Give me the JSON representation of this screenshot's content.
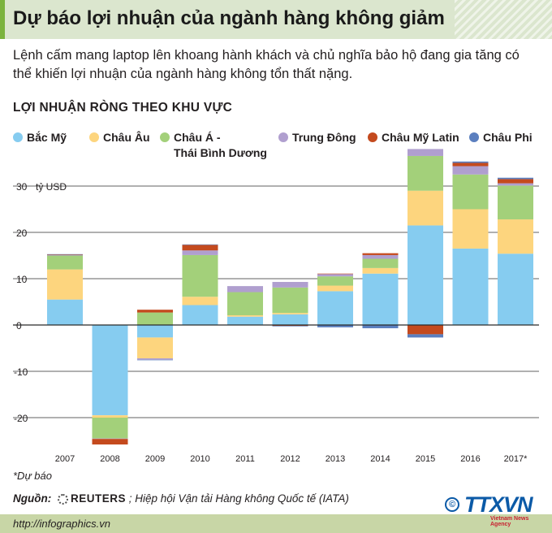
{
  "header": {
    "title": "Dự báo lợi nhuận của ngành hàng không giảm",
    "subtitle": "Lệnh cấm mang laptop lên khoang hành khách và chủ nghĩa bảo hộ đang gia tăng có thể khiến lợi nhuận của ngành hàng không tổn thất nặng.",
    "section": "LỢI NHUẬN RÒNG THEO KHU VỰC"
  },
  "colors": {
    "title_bar": "#dbe6ce",
    "footer_bar": "#c8d6a6"
  },
  "chart_data": {
    "type": "bar",
    "stacked": true,
    "unit": "tỷ USD",
    "categories": [
      "2007",
      "2008",
      "2009",
      "2010",
      "2011",
      "2012",
      "2013",
      "2014",
      "2015",
      "2016",
      "2017*"
    ],
    "ylim": [
      -27,
      38
    ],
    "yticks": [
      -20,
      -10,
      0,
      10,
      20,
      30
    ],
    "ytick_labels": [
      "-20",
      "-10",
      "0",
      "10",
      "20",
      "30"
    ],
    "grid": true,
    "legend_position": "top",
    "series": [
      {
        "name": "Bắc Mỹ",
        "color": "#86ccf0",
        "values": [
          5.5,
          -19.5,
          -2.7,
          4.3,
          1.8,
          2.3,
          7.3,
          11.1,
          21.5,
          16.5,
          15.4
        ]
      },
      {
        "name": "Châu Âu",
        "color": "#fdd57e",
        "values": [
          6.5,
          -0.5,
          -4.5,
          1.8,
          0.3,
          0.3,
          1.2,
          1.2,
          7.5,
          8.5,
          7.4
        ]
      },
      {
        "name": "Châu Á - Thái Bình Dương",
        "color": "#a3d07a",
        "values": [
          3.0,
          -4.5,
          2.7,
          9.0,
          5.0,
          5.5,
          2.0,
          2.0,
          7.5,
          7.5,
          7.3
        ]
      },
      {
        "name": "Trung Đông",
        "color": "#b09fcf",
        "values": [
          0.1,
          -0.1,
          -0.3,
          1.0,
          1.3,
          1.2,
          0.5,
          0.8,
          1.5,
          1.8,
          0.5
        ]
      },
      {
        "name": "Châu Mỹ Latin",
        "color": "#c44a1e",
        "values": [
          0.1,
          -1.2,
          0.6,
          1.2,
          0.0,
          -0.2,
          0.1,
          0.4,
          -2.0,
          0.7,
          0.9
        ]
      },
      {
        "name": "Châu Phi",
        "color": "#5b7fbf",
        "values": [
          0.1,
          0.0,
          -0.1,
          0.1,
          0.0,
          -0.1,
          -0.5,
          -0.7,
          -0.7,
          0.3,
          0.3
        ]
      }
    ]
  },
  "legend": {
    "items": [
      {
        "label": "Bắc Mỹ",
        "line2": ""
      },
      {
        "label": "Châu Âu",
        "line2": ""
      },
      {
        "label": "Châu Á -",
        "line2": "Thái Bình Dương"
      },
      {
        "label": "Trung Đông",
        "line2": ""
      },
      {
        "label": "Châu Mỹ Latin",
        "line2": ""
      },
      {
        "label": "Châu Phi",
        "line2": ""
      }
    ]
  },
  "footer": {
    "footnote": "*Dự báo",
    "source_label": "Nguồn:",
    "source_reuters": "REUTERS",
    "source_rest": " ; Hiệp hội Vận tải Hàng không Quốc tế (IATA)",
    "url": "http://infographics.vn",
    "logo_symbol": "©",
    "logo_brand": "TTXVN",
    "logo_agency": "Vietnam News Agency"
  },
  "icons": [
    "reuters-icon",
    "copyright-icon"
  ]
}
